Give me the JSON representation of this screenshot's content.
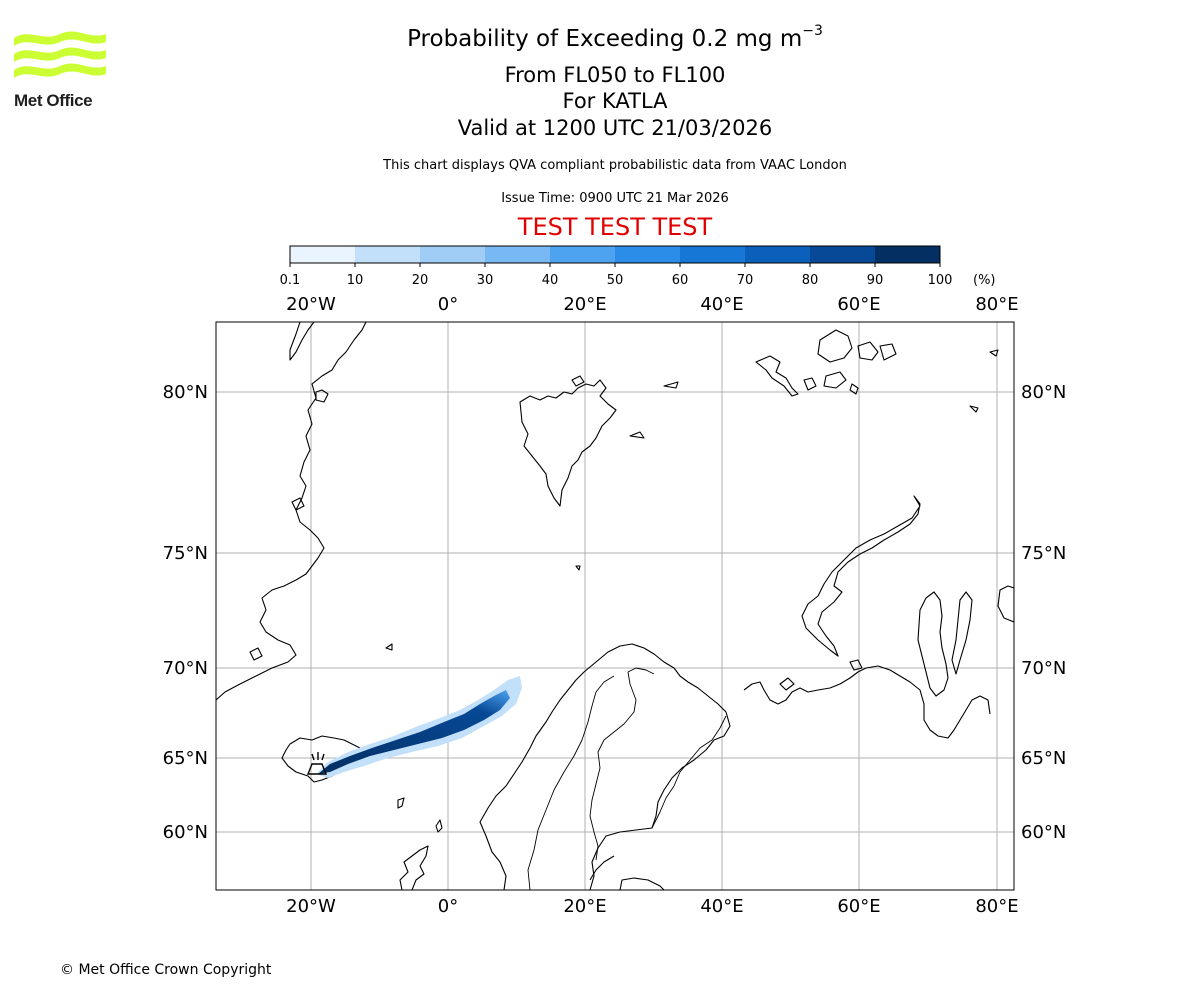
{
  "logo": {
    "text": "Met Office",
    "brand_color": "#ccff33"
  },
  "header": {
    "title_main": "Probability of Exceeding 0.2 mg m",
    "title_exponent": "−3",
    "levels": "From FL050 to FL100",
    "volcano": "For KATLA",
    "valid": "Valid at 1200 UTC 21/03/2026",
    "note": "This chart displays QVA compliant probabilistic data from VAAC London",
    "issue": "Issue Time: 0900 UTC 21 Mar 2026",
    "test_banner": "TEST TEST TEST",
    "test_color": "#e00000"
  },
  "colorbar": {
    "ticks": [
      "0.1",
      "10",
      "20",
      "30",
      "40",
      "50",
      "60",
      "70",
      "80",
      "90",
      "100"
    ],
    "unit": "(%)",
    "colors": [
      "#eaf4fe",
      "#c3e0fa",
      "#9fcdf6",
      "#78b9f4",
      "#4ea3f0",
      "#2b8de7",
      "#1677d7",
      "#0b60bc",
      "#074996",
      "#032f62"
    ]
  },
  "map": {
    "lon_labels": [
      "20°W",
      "0°",
      "20°E",
      "40°E",
      "60°E",
      "80°E"
    ],
    "lat_labels": [
      "80°N",
      "75°N",
      "70°N",
      "65°N",
      "60°N"
    ],
    "longitudes": [
      -20,
      0,
      20,
      40,
      60,
      80
    ],
    "latitudes": [
      80,
      75,
      70,
      65,
      60
    ],
    "plume_probability_peak": 100
  },
  "footer": {
    "copyright": "© Met Office Crown Copyright"
  }
}
